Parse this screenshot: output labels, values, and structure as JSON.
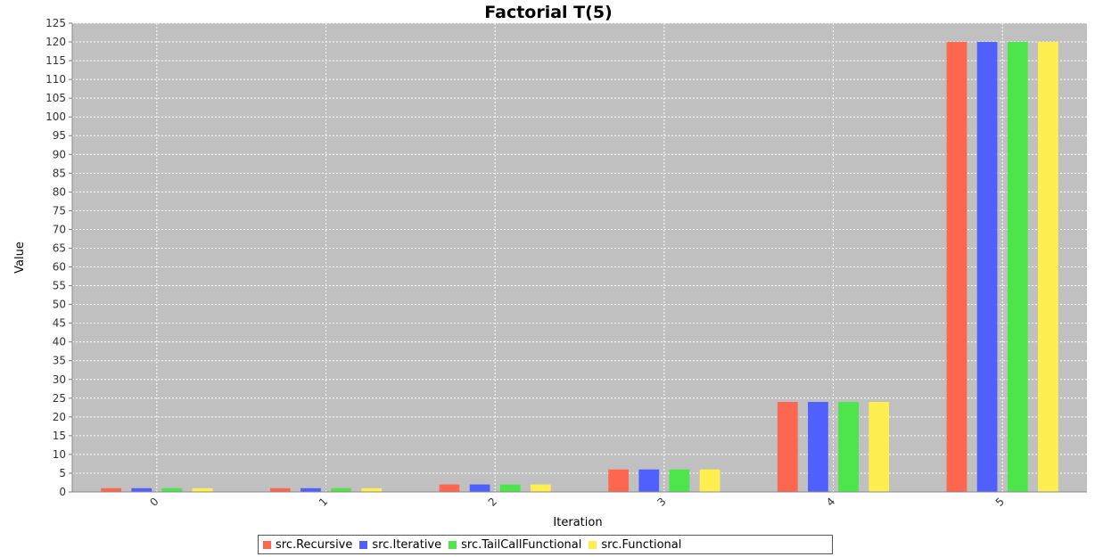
{
  "chart_data": {
    "type": "bar",
    "title": "Factorial T(5)",
    "xlabel": "Iteration",
    "ylabel": "Value",
    "categories": [
      "0",
      "1",
      "2",
      "3",
      "4",
      "5"
    ],
    "ylim": [
      0,
      125
    ],
    "y_tick_step": 5,
    "grid": true,
    "legend_position": "bottom",
    "series": [
      {
        "name": "src.Recursive",
        "color": "#ff6650",
        "values": [
          1,
          1,
          2,
          6,
          24,
          120
        ]
      },
      {
        "name": "src.Iterative",
        "color": "#5060ff",
        "values": [
          1,
          1,
          2,
          6,
          24,
          120
        ]
      },
      {
        "name": "src.TailCallFunctional",
        "color": "#4ce64c",
        "values": [
          1,
          1,
          2,
          6,
          24,
          120
        ]
      },
      {
        "name": "src.Functional",
        "color": "#ffee50",
        "values": [
          1,
          1,
          2,
          6,
          24,
          120
        ]
      }
    ]
  }
}
